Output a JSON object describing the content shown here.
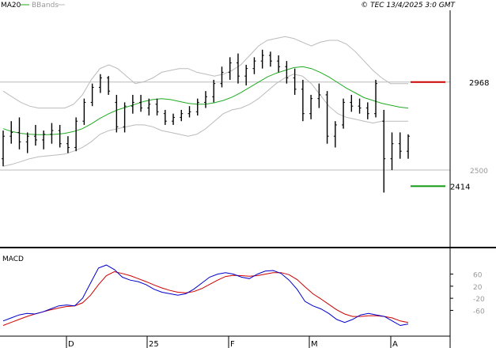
{
  "header": {
    "legend_ma_label": "MA20",
    "legend_bb_label": "BBands",
    "copyright": "© TEC 13/4/2025 3:0 GMT"
  },
  "colors": {
    "ma": "#22aa22",
    "bands": "#bbbbbb",
    "price": "#000000",
    "resistance": "#cc0000",
    "support": "#119911",
    "macd": "#0000cc",
    "signal": "#cc0000",
    "grid": "#bbbbbb"
  },
  "chart_data": [
    {
      "type": "line",
      "title": "",
      "xlabel": "",
      "ylabel": "",
      "ylim": [
        2100,
        3350
      ],
      "y_ticks": [
        2500,
        2968
      ],
      "x_tick_labels": [
        "D",
        "25",
        "F",
        "M",
        "A"
      ],
      "levels": {
        "resistance": {
          "label": "2968",
          "value": 2968
        },
        "support": {
          "label": "2414",
          "value": 2414
        }
      },
      "series": [
        {
          "name": "MA20",
          "values": [
            2720,
            2705,
            2695,
            2690,
            2688,
            2688,
            2690,
            2695,
            2705,
            2720,
            2745,
            2775,
            2800,
            2820,
            2835,
            2850,
            2865,
            2875,
            2880,
            2875,
            2865,
            2855,
            2850,
            2850,
            2858,
            2870,
            2888,
            2912,
            2940,
            2968,
            2995,
            3015,
            3030,
            3045,
            3050,
            3040,
            3020,
            2995,
            2965,
            2935,
            2910,
            2885,
            2870,
            2855,
            2845,
            2835,
            2830
          ]
        },
        {
          "name": "BBands",
          "values": [
            2520,
            2530,
            2545,
            2560,
            2570,
            2575,
            2580,
            2585,
            2600,
            2620,
            2650,
            2690,
            2710,
            2720,
            2730,
            2740,
            2740,
            2730,
            2710,
            2700,
            2690,
            2680,
            2690,
            2720,
            2760,
            2800,
            2820,
            2830,
            2850,
            2880,
            2920,
            2960,
            2990,
            3010,
            3000,
            2960,
            2900,
            2840,
            2800,
            2780,
            2770,
            2760,
            2750,
            2760,
            2760,
            2760,
            2760
          ]
        },
        {
          "name": "BBands",
          "values": [
            2920,
            2890,
            2860,
            2840,
            2830,
            2830,
            2830,
            2830,
            2850,
            2900,
            2980,
            3040,
            3060,
            3040,
            3000,
            2960,
            2970,
            2990,
            3020,
            3030,
            3040,
            3040,
            3020,
            3010,
            3000,
            3010,
            3030,
            3060,
            3110,
            3160,
            3190,
            3200,
            3210,
            3200,
            3180,
            3160,
            3180,
            3190,
            3190,
            3170,
            3130,
            3080,
            3030,
            2990,
            2960,
            2960,
            2960
          ]
        }
      ],
      "ohlc": [
        {
          "o": 2560,
          "h": 2710,
          "l": 2520,
          "c": 2680
        },
        {
          "o": 2680,
          "h": 2760,
          "l": 2640,
          "c": 2700
        },
        {
          "o": 2700,
          "h": 2780,
          "l": 2610,
          "c": 2650
        },
        {
          "o": 2650,
          "h": 2700,
          "l": 2590,
          "c": 2680
        },
        {
          "o": 2680,
          "h": 2740,
          "l": 2630,
          "c": 2660
        },
        {
          "o": 2660,
          "h": 2710,
          "l": 2610,
          "c": 2690
        },
        {
          "o": 2690,
          "h": 2750,
          "l": 2640,
          "c": 2710
        },
        {
          "o": 2710,
          "h": 2740,
          "l": 2620,
          "c": 2640
        },
        {
          "o": 2640,
          "h": 2680,
          "l": 2590,
          "c": 2620
        },
        {
          "o": 2620,
          "h": 2780,
          "l": 2600,
          "c": 2760
        },
        {
          "o": 2760,
          "h": 2880,
          "l": 2740,
          "c": 2860
        },
        {
          "o": 2860,
          "h": 2960,
          "l": 2840,
          "c": 2940
        },
        {
          "o": 2940,
          "h": 3010,
          "l": 2910,
          "c": 2990
        },
        {
          "o": 2990,
          "h": 3000,
          "l": 2900,
          "c": 2920
        },
        {
          "o": 2860,
          "h": 2900,
          "l": 2700,
          "c": 2730
        },
        {
          "o": 2730,
          "h": 2860,
          "l": 2700,
          "c": 2840
        },
        {
          "o": 2840,
          "h": 2900,
          "l": 2800,
          "c": 2860
        },
        {
          "o": 2860,
          "h": 2900,
          "l": 2810,
          "c": 2830
        },
        {
          "o": 2830,
          "h": 2880,
          "l": 2790,
          "c": 2850
        },
        {
          "o": 2850,
          "h": 2880,
          "l": 2790,
          "c": 2810
        },
        {
          "o": 2800,
          "h": 2820,
          "l": 2740,
          "c": 2760
        },
        {
          "o": 2760,
          "h": 2800,
          "l": 2740,
          "c": 2780
        },
        {
          "o": 2780,
          "h": 2820,
          "l": 2760,
          "c": 2800
        },
        {
          "o": 2800,
          "h": 2840,
          "l": 2780,
          "c": 2810
        },
        {
          "o": 2810,
          "h": 2880,
          "l": 2790,
          "c": 2860
        },
        {
          "o": 2860,
          "h": 2920,
          "l": 2830,
          "c": 2890
        },
        {
          "o": 2890,
          "h": 2980,
          "l": 2860,
          "c": 2960
        },
        {
          "o": 2960,
          "h": 3050,
          "l": 2940,
          "c": 3020
        },
        {
          "o": 3020,
          "h": 3100,
          "l": 2980,
          "c": 3070
        },
        {
          "o": 3070,
          "h": 3120,
          "l": 2960,
          "c": 3000
        },
        {
          "o": 3000,
          "h": 3060,
          "l": 2950,
          "c": 3040
        },
        {
          "o": 3040,
          "h": 3100,
          "l": 3010,
          "c": 3080
        },
        {
          "o": 3080,
          "h": 3140,
          "l": 3040,
          "c": 3110
        },
        {
          "o": 3110,
          "h": 3130,
          "l": 3050,
          "c": 3080
        },
        {
          "o": 3080,
          "h": 3110,
          "l": 3020,
          "c": 3050
        },
        {
          "o": 3050,
          "h": 3080,
          "l": 2960,
          "c": 2990
        },
        {
          "o": 2990,
          "h": 3040,
          "l": 2900,
          "c": 2930
        },
        {
          "o": 2930,
          "h": 2980,
          "l": 2760,
          "c": 2800
        },
        {
          "o": 2800,
          "h": 2900,
          "l": 2770,
          "c": 2880
        },
        {
          "o": 2880,
          "h": 2960,
          "l": 2830,
          "c": 2900
        },
        {
          "o": 2900,
          "h": 2920,
          "l": 2640,
          "c": 2680
        },
        {
          "o": 2680,
          "h": 2760,
          "l": 2620,
          "c": 2740
        },
        {
          "o": 2740,
          "h": 2880,
          "l": 2720,
          "c": 2860
        },
        {
          "o": 2860,
          "h": 2900,
          "l": 2810,
          "c": 2840
        },
        {
          "o": 2840,
          "h": 2880,
          "l": 2800,
          "c": 2830
        },
        {
          "o": 2830,
          "h": 2860,
          "l": 2770,
          "c": 2800
        },
        {
          "o": 2800,
          "h": 2980,
          "l": 2780,
          "c": 2960
        },
        {
          "o": 2760,
          "h": 2820,
          "l": 2380,
          "c": 2560
        },
        {
          "o": 2560,
          "h": 2700,
          "l": 2500,
          "c": 2640
        },
        {
          "o": 2640,
          "h": 2700,
          "l": 2560,
          "c": 2600
        },
        {
          "o": 2600,
          "h": 2690,
          "l": 2560,
          "c": 2680
        }
      ]
    },
    {
      "type": "line",
      "title": "MACD",
      "xlabel": "",
      "ylabel": "",
      "ylim": [
        -140,
        140
      ],
      "y_ticks": [
        60,
        20,
        -20,
        -60
      ],
      "y_tick_labels": [
        "60",
        "20",
        "-20",
        "-60"
      ],
      "series": [
        {
          "name": "",
          "values": [
            -95,
            -85,
            -75,
            -70,
            -72,
            -65,
            -55,
            -45,
            -42,
            -45,
            -20,
            30,
            80,
            90,
            75,
            50,
            40,
            35,
            25,
            10,
            0,
            -5,
            -10,
            -5,
            10,
            30,
            50,
            60,
            65,
            60,
            50,
            45,
            60,
            70,
            72,
            62,
            40,
            10,
            -30,
            -45,
            -55,
            -70,
            -90,
            -100,
            -90,
            -75,
            -70,
            -75,
            -80,
            -95,
            -110,
            -105
          ]
        },
        {
          "name": "",
          "values": [
            -110,
            -100,
            -90,
            -80,
            -72,
            -65,
            -58,
            -52,
            -47,
            -45,
            -35,
            -10,
            25,
            55,
            68,
            62,
            55,
            45,
            35,
            24,
            14,
            6,
            0,
            -2,
            2,
            12,
            26,
            40,
            52,
            56,
            55,
            53,
            55,
            60,
            65,
            65,
            58,
            42,
            18,
            -5,
            -22,
            -40,
            -58,
            -72,
            -80,
            -80,
            -78,
            -78,
            -80,
            -85,
            -95,
            -100
          ]
        }
      ]
    }
  ]
}
